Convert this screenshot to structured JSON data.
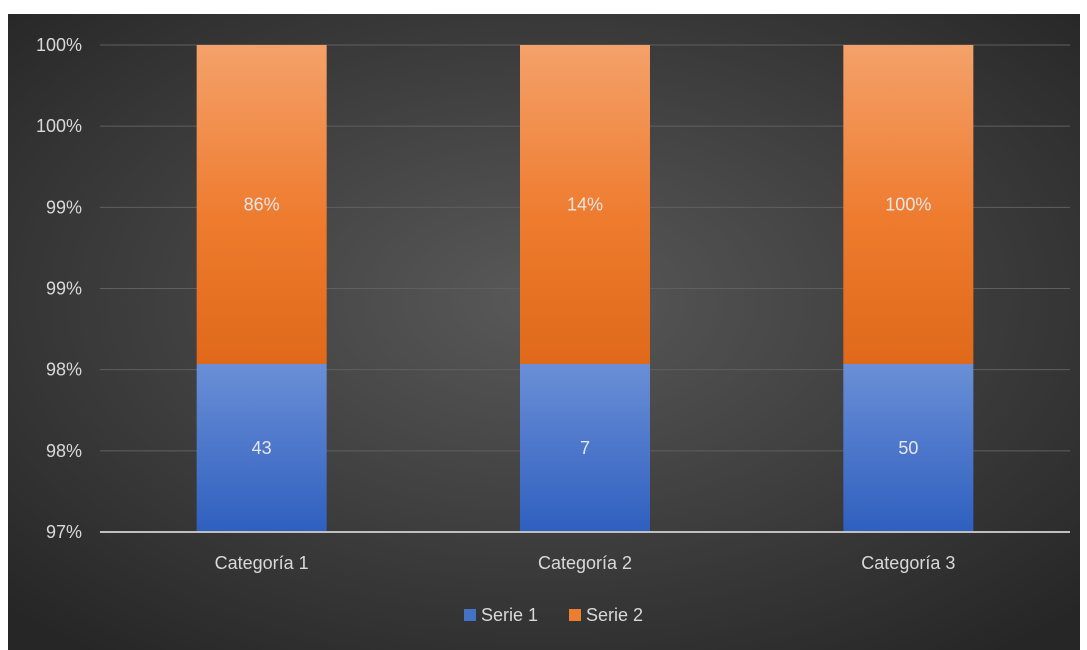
{
  "chart_data": {
    "type": "bar",
    "stacked": true,
    "categories": [
      "Categoría 1",
      "Categoría 2",
      "Categoría 3"
    ],
    "series": [
      {
        "name": "Serie 1",
        "color": "#4472c4",
        "data_labels": [
          "43",
          "7",
          "50"
        ]
      },
      {
        "name": "Serie 2",
        "color": "#ed7d31",
        "data_labels": [
          "86%",
          "14%",
          "100%"
        ]
      }
    ],
    "y_tick_labels": [
      "97%",
      "98%",
      "98%",
      "99%",
      "99%",
      "100%",
      "100%"
    ],
    "ylim": [
      97,
      100
    ],
    "grid": true,
    "legend_position": "bottom",
    "background_color": "#404040",
    "title": "",
    "xlabel": "",
    "ylabel": ""
  }
}
